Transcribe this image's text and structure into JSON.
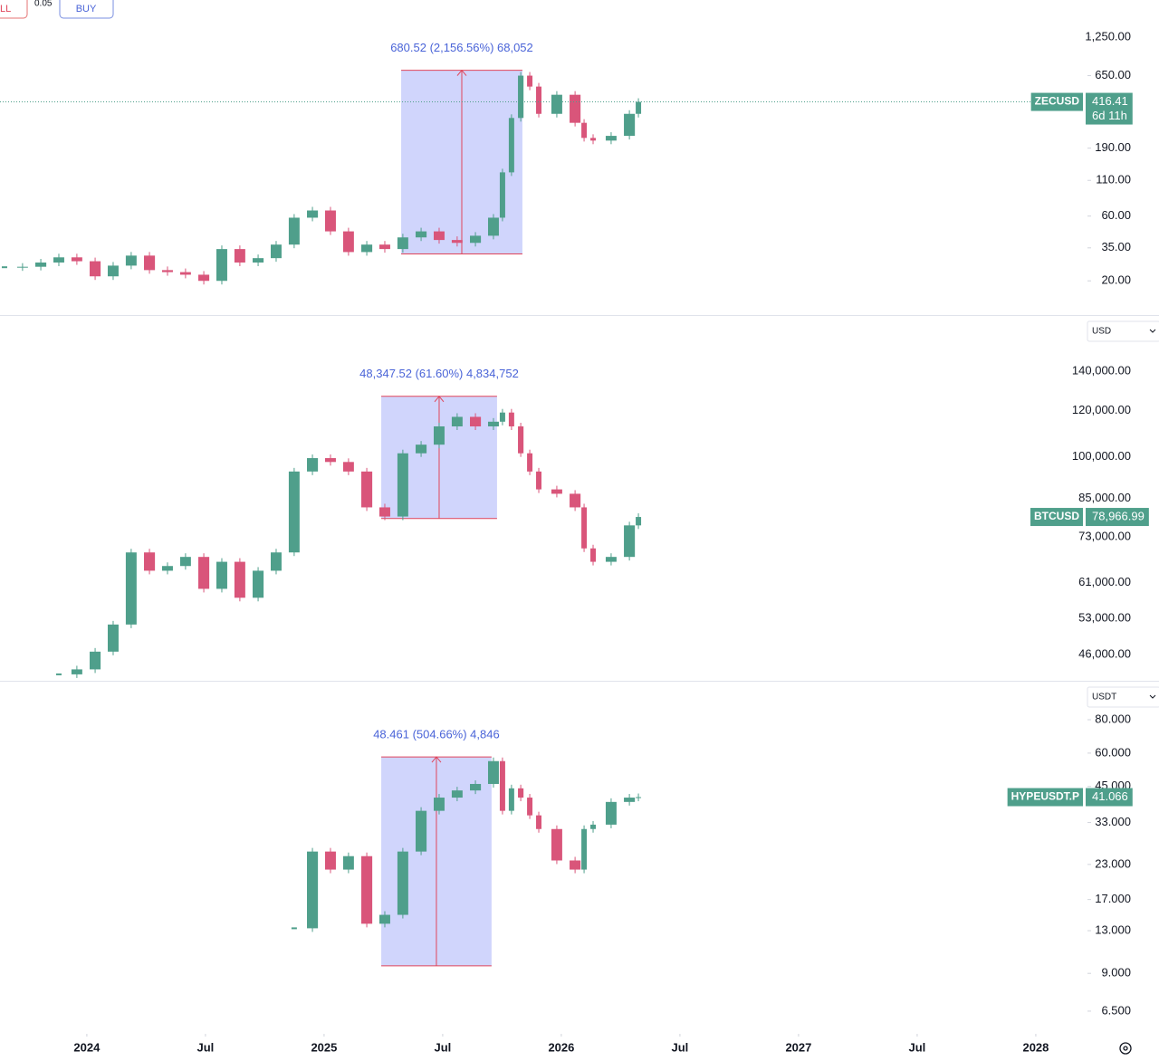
{
  "toolbar": {
    "sell": "LL",
    "qty": "0.05",
    "buy": "BUY"
  },
  "chart_data": [
    {
      "type": "candlestick",
      "symbol": "ZECUSD",
      "log_scale": true,
      "price_line": true,
      "color_up": "#4f9f8b",
      "color_down": "#d9557a",
      "xlim": [
        2023.634,
        2028.214
      ],
      "ylim": [
        11.2,
        2345
      ],
      "yticks": [
        {
          "value": 1250,
          "label": "1,250.00"
        },
        {
          "value": 650,
          "label": "650.00"
        },
        {
          "value": 190,
          "label": "190.00"
        },
        {
          "value": 110,
          "label": "110.00"
        },
        {
          "value": 60,
          "label": "60.00"
        },
        {
          "value": 35,
          "label": "35.00"
        },
        {
          "value": 20,
          "label": "20.00"
        }
      ],
      "x": [
        2023.653,
        2023.729,
        2023.806,
        2023.882,
        2023.958,
        2024.035,
        2024.111,
        2024.187,
        2024.264,
        2024.34,
        2024.416,
        2024.493,
        2024.569,
        2024.645,
        2024.722,
        2024.798,
        2024.874,
        2024.951,
        2025.027,
        2025.103,
        2025.18,
        2025.256,
        2025.332,
        2025.409,
        2025.485,
        2025.561,
        2025.638,
        2025.714,
        2025.752,
        2025.79,
        2025.829,
        2025.867,
        2025.905,
        2025.981,
        2026.058,
        2026.096,
        2026.134,
        2026.21,
        2026.287,
        2026.325
      ],
      "values": [
        25.2,
        25.4,
        27.3,
        29.8,
        27.9,
        21.6,
        25.9,
        30.7,
        24,
        23.2,
        22.2,
        20,
        34.3,
        27.3,
        29.4,
        37,
        58.4,
        66,
        46.3,
        32.6,
        37,
        34.3,
        41.8,
        46.3,
        40,
        38.1,
        43,
        58.4,
        126,
        317,
        650,
        540,
        340,
        470,
        292,
        226,
        216,
        234,
        340,
        416.41
      ],
      "last_price_label": "416.41",
      "countdown": "6d 11h",
      "measure": {
        "x": [
          2025.325,
          2025.836
        ],
        "y": [
          31.56,
          712.08
        ],
        "label": "680.52 (2,156.56%) 68,052"
      }
    },
    {
      "type": "candlestick",
      "symbol": "BTCUSD",
      "currency": "USD",
      "log_scale": true,
      "color_up": "#4f9f8b",
      "color_down": "#d9557a",
      "xlim": [
        2023.634,
        2028.214
      ],
      "ylim": [
        41500,
        173900
      ],
      "yticks": [
        {
          "value": 140000,
          "label": "140,000.00"
        },
        {
          "value": 120000,
          "label": "120,000.00"
        },
        {
          "value": 100000,
          "label": "100,000.00"
        },
        {
          "value": 85000,
          "label": "85,000.00"
        },
        {
          "value": 73000,
          "label": "73,000.00"
        },
        {
          "value": 61000,
          "label": "61,000.00"
        },
        {
          "value": 53000,
          "label": "53,000.00"
        },
        {
          "value": 46000,
          "label": "46,000.00"
        }
      ],
      "x": [
        2023.653,
        2023.729,
        2023.806,
        2023.882,
        2023.958,
        2024.035,
        2024.111,
        2024.187,
        2024.264,
        2024.34,
        2024.416,
        2024.493,
        2024.569,
        2024.645,
        2024.722,
        2024.798,
        2024.874,
        2024.951,
        2025.027,
        2025.103,
        2025.18,
        2025.256,
        2025.332,
        2025.409,
        2025.485,
        2025.561,
        2025.638,
        2025.714,
        2025.752,
        2025.79,
        2025.829,
        2025.867,
        2025.905,
        2025.981,
        2026.058,
        2026.096,
        2026.134,
        2026.21,
        2026.287,
        2026.325
      ],
      "values": [
        null,
        null,
        null,
        42560,
        43400,
        46530,
        51760,
        68700,
        63940,
        65130,
        67500,
        59550,
        66220,
        57500,
        63940,
        68700,
        94400,
        99500,
        98000,
        94400,
        82000,
        79100,
        101400,
        104900,
        112700,
        117000,
        112700,
        114800,
        119000,
        112700,
        101400,
        94400,
        88000,
        86500,
        82000,
        69800,
        66220,
        67500,
        76400,
        78966.99
      ],
      "last_price_label": "78,966.99",
      "measure": {
        "x": [
          2025.241,
          2025.729
        ],
        "y": [
          78486,
          126834
        ],
        "label": "48,347.52 (61.60%) 4,834,752"
      }
    },
    {
      "type": "candlestick",
      "symbol": "HYPEUSDT.P",
      "currency": "USDT",
      "log_scale": true,
      "color_up": "#4f9f8b",
      "color_down": "#d9557a",
      "xlim": [
        2023.634,
        2028.214
      ],
      "ylim": [
        5.43,
        111
      ],
      "yticks": [
        {
          "value": 80,
          "label": "80.000"
        },
        {
          "value": 60,
          "label": "60.000"
        },
        {
          "value": 45,
          "label": "45.000"
        },
        {
          "value": 33,
          "label": "33.000"
        },
        {
          "value": 23,
          "label": "23.000"
        },
        {
          "value": 17,
          "label": "17.000"
        },
        {
          "value": 13,
          "label": "13.000"
        },
        {
          "value": 9,
          "label": "9.000"
        },
        {
          "value": 6.5,
          "label": "6.500"
        }
      ],
      "xticks": [
        2024,
        {
          "value": 2024.5,
          "label": "Jul"
        },
        2025,
        {
          "value": 2025.5,
          "label": "Jul"
        },
        2026,
        {
          "value": 2026.5,
          "label": "Jul"
        },
        2027,
        {
          "value": 2027.5,
          "label": "Jul"
        },
        2028
      ],
      "x": [
        2023.653,
        2023.729,
        2023.806,
        2023.882,
        2023.958,
        2024.035,
        2024.111,
        2024.187,
        2024.264,
        2024.34,
        2024.416,
        2024.493,
        2024.569,
        2024.645,
        2024.722,
        2024.798,
        2024.874,
        2024.951,
        2025.027,
        2025.103,
        2025.18,
        2025.256,
        2025.332,
        2025.409,
        2025.485,
        2025.561,
        2025.638,
        2025.714,
        2025.752,
        2025.79,
        2025.829,
        2025.867,
        2025.905,
        2025.981,
        2026.058,
        2026.096,
        2026.134,
        2026.21,
        2026.287,
        2026.325
      ],
      "values": [
        null,
        null,
        null,
        null,
        null,
        null,
        null,
        null,
        null,
        null,
        null,
        null,
        null,
        null,
        null,
        null,
        13.27,
        25.7,
        22.0,
        24.7,
        13.8,
        14.9,
        25.7,
        36.5,
        40.9,
        43.5,
        46.0,
        56.0,
        36.5,
        44.3,
        40.9,
        35.1,
        31.2,
        23.8,
        22.0,
        31.2,
        32.4,
        39.4,
        40.9,
        41.066
      ],
      "last_price_label": "41.066",
      "measure": {
        "x": [
          2025.241,
          2025.706
        ],
        "y": [
          9.603,
          58.064
        ],
        "label": "48.461 (504.66%) 4,846"
      }
    }
  ]
}
